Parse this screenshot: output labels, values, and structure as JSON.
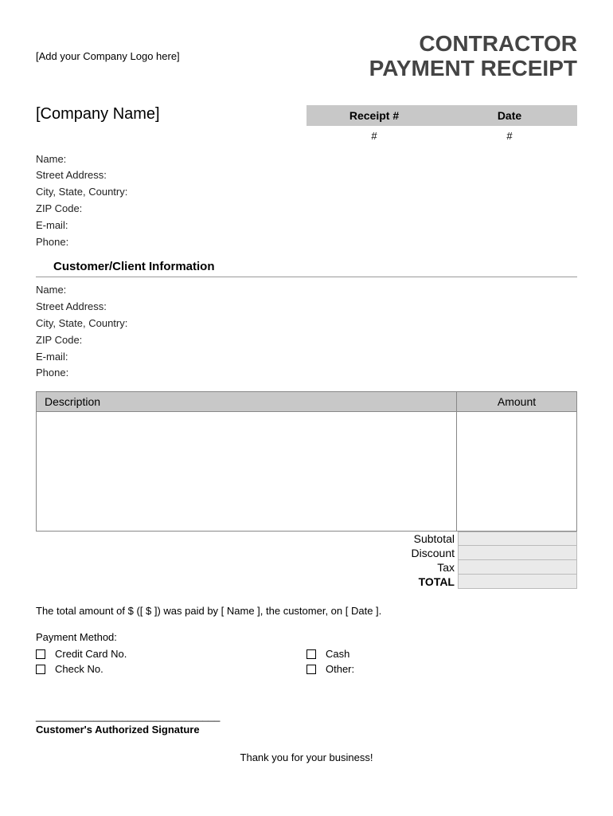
{
  "header": {
    "logo_text": "[Add your Company Logo here]",
    "title_line1": "CONTRACTOR",
    "title_line2": "PAYMENT RECEIPT"
  },
  "company": {
    "name_placeholder": "[Company Name]",
    "fields": {
      "name": "Name:",
      "street": "Street Address:",
      "city": "City, State, Country:",
      "zip": "ZIP Code:",
      "email": "E-mail:",
      "phone": "Phone:"
    }
  },
  "receipt_box": {
    "receipt_label": "Receipt #",
    "date_label": "Date",
    "receipt_value": "#",
    "date_value": "#",
    "header_bg": "#c8c8c8"
  },
  "customer_section": {
    "header": "Customer/Client Information",
    "fields": {
      "name": "Name:",
      "street": "Street Address:",
      "city": "City, State, Country:",
      "zip": "ZIP Code:",
      "email": "E-mail:",
      "phone": "Phone:"
    }
  },
  "desc_table": {
    "desc_header": "Description",
    "amount_header": "Amount",
    "header_bg": "#c8c8c8"
  },
  "totals": {
    "subtotal": "Subtotal",
    "discount": "Discount",
    "tax": "Tax",
    "total": "TOTAL",
    "cell_bg": "#eaeaea"
  },
  "statement": "The total amount of $ ([ $ ]) was paid by [ Name ], the customer, on [ Date ].",
  "payment": {
    "label": "Payment Method:",
    "options": {
      "credit": "Credit Card No.",
      "check": "Check No.",
      "cash": "Cash",
      "other": "Other:"
    }
  },
  "signature": {
    "line": "________________________________",
    "label": "Customer's Authorized Signature"
  },
  "footer": "Thank you for your business!"
}
